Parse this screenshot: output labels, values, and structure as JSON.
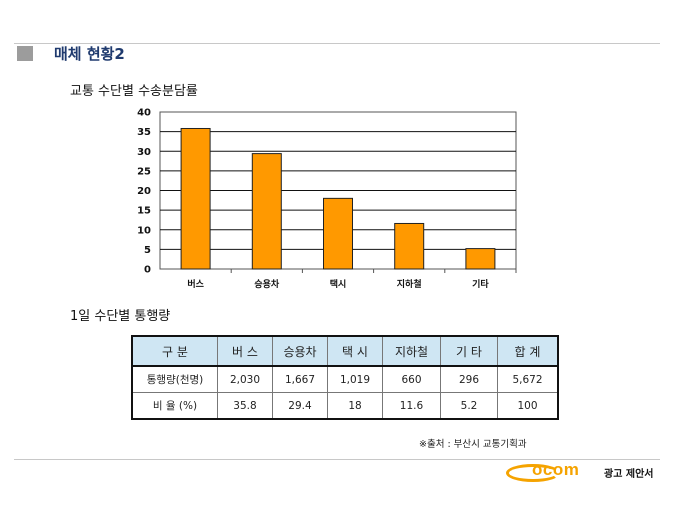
{
  "header": {
    "title": "매체 현황2"
  },
  "chart_title": "교통 수단별 수송분담률",
  "chart_data": {
    "type": "bar",
    "categories": [
      "버스",
      "승용차",
      "택시",
      "지하철",
      "기타"
    ],
    "values": [
      35.8,
      29.4,
      18,
      11.6,
      5.2
    ],
    "ylim": [
      0,
      40
    ],
    "yticks": [
      0,
      5,
      10,
      15,
      20,
      25,
      30,
      35,
      40
    ],
    "grid": true,
    "bar_color": "#ff9900"
  },
  "table_title": "1일 수단별 통행량",
  "table": {
    "headers": [
      "구 분",
      "버 스",
      "승용차",
      "택 시",
      "지하철",
      "기 타",
      "합 계"
    ],
    "rows": [
      [
        "통행량(천명)",
        "2,030",
        "1,667",
        "1,019",
        "660",
        "296",
        "5,672"
      ],
      [
        "비 율 (%)",
        "35.8",
        "29.4",
        "18",
        "11.6",
        "5.2",
        "100"
      ]
    ]
  },
  "source_note": "※출처 : 부산시 교통기획과",
  "logo": {
    "word": "ocom",
    "tagline": "광고 제안서",
    "color": "#f5a300"
  }
}
